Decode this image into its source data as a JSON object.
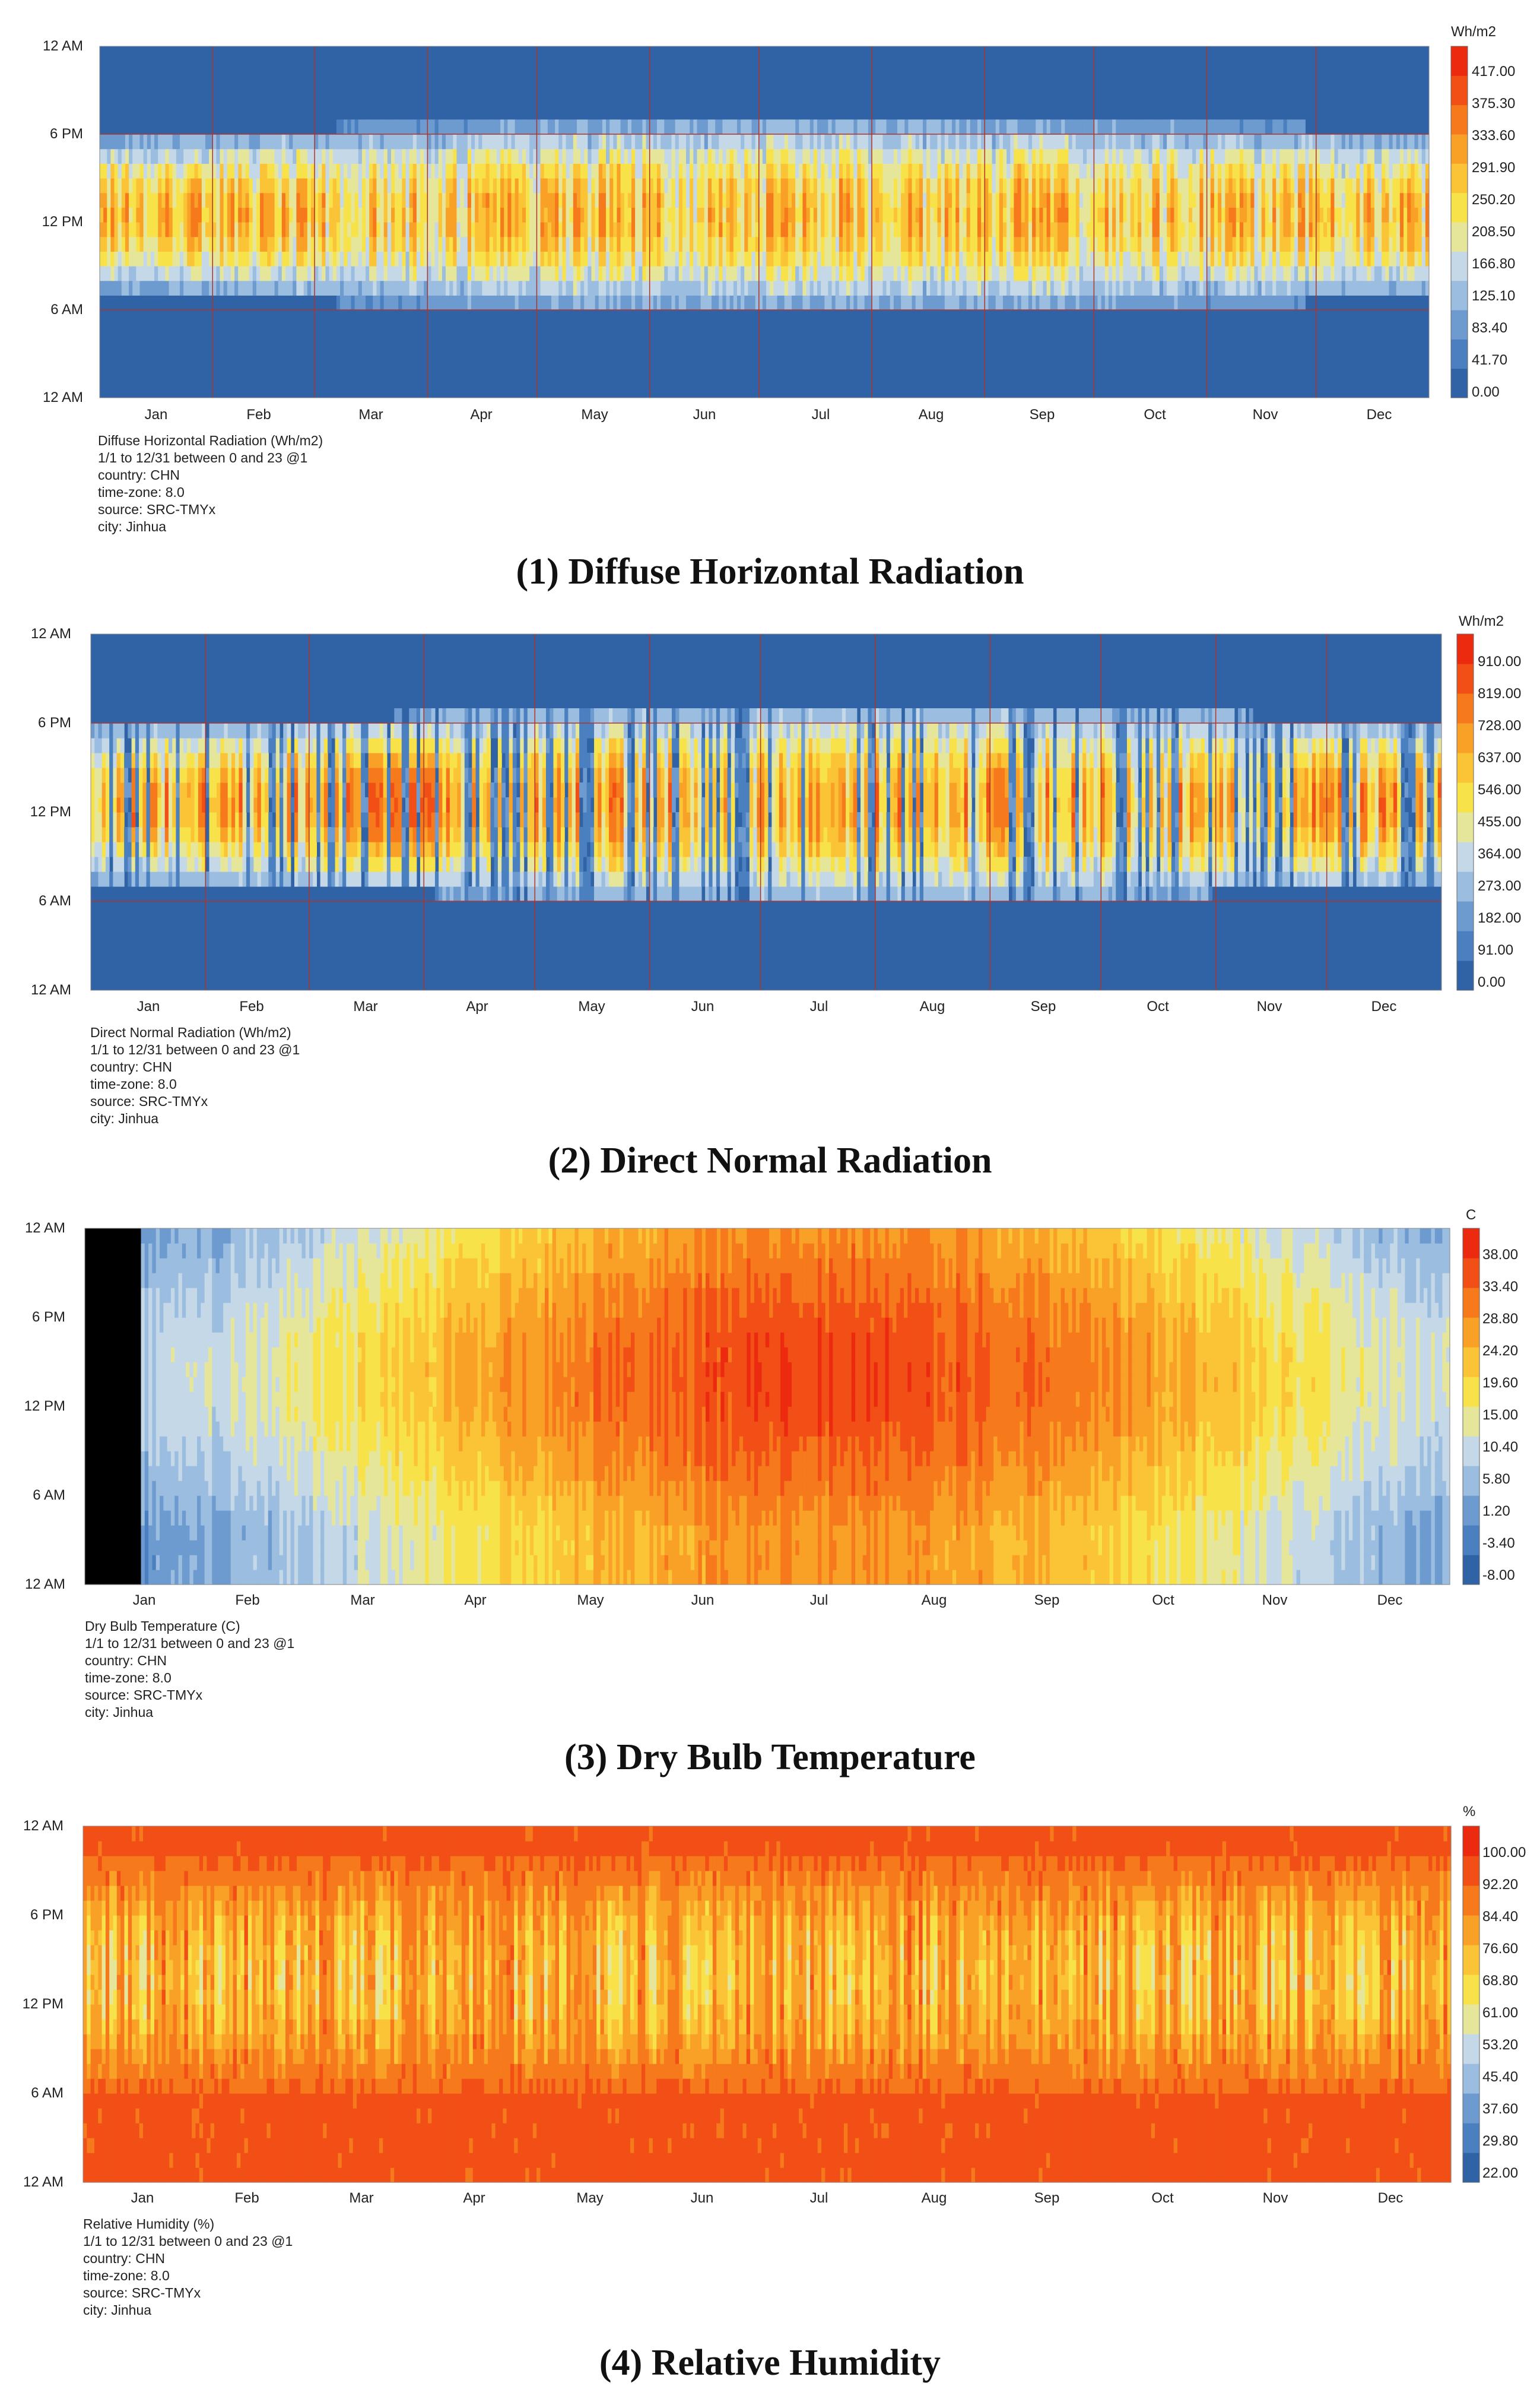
{
  "chart_data": [
    {
      "type": "heatmap",
      "caption": "(1) Diffuse Horizontal Radiation",
      "unit": "Wh/m2",
      "y_tick_labels": [
        "12 AM",
        "6 PM",
        "12 PM",
        "6 AM",
        "12 AM"
      ],
      "x_tick_labels": [
        "Jan",
        "Feb",
        "Mar",
        "Apr",
        "May",
        "Jun",
        "Jul",
        "Aug",
        "Sep",
        "Oct",
        "Nov",
        "Dec"
      ],
      "legend_labels": [
        "417.00",
        "375.30",
        "333.60",
        "291.90",
        "250.20",
        "208.50",
        "166.80",
        "125.10",
        "83.40",
        "41.70",
        "0.00"
      ],
      "value_range": [
        0,
        417
      ],
      "metadata": [
        "Diffuse Horizontal Radiation (Wh/m2)",
        "1/1 to 12/31 between 0 and 23 @1",
        "country: CHN",
        "time-zone: 8.0",
        "source: SRC-TMYx",
        "city: Jinhua"
      ],
      "notes": "Daytime values peak near midday, zero at night"
    },
    {
      "type": "heatmap",
      "caption": "(2) Direct Normal Radiation",
      "unit": "Wh/m2",
      "y_tick_labels": [
        "12 AM",
        "6 PM",
        "12 PM",
        "6 AM",
        "12 AM"
      ],
      "x_tick_labels": [
        "Jan",
        "Feb",
        "Mar",
        "Apr",
        "May",
        "Jun",
        "Jul",
        "Aug",
        "Sep",
        "Oct",
        "Nov",
        "Dec"
      ],
      "legend_labels": [
        "910.00",
        "819.00",
        "728.00",
        "637.00",
        "546.00",
        "455.00",
        "364.00",
        "273.00",
        "182.00",
        "91.00",
        "0.00"
      ],
      "value_range": [
        0,
        910
      ],
      "metadata": [
        "Direct Normal Radiation (Wh/m2)",
        "1/1 to 12/31 between 0 and 23 @1",
        "country: CHN",
        "time-zone: 8.0",
        "source: SRC-TMYx",
        "city: Jinhua"
      ],
      "notes": "Clear days show high midday values, cloudy days near zero"
    },
    {
      "type": "heatmap",
      "caption": "(3) Dry Bulb Temperature",
      "unit": "C",
      "y_tick_labels": [
        "12 AM",
        "6 PM",
        "12 PM",
        "6 AM",
        "12 AM"
      ],
      "x_tick_labels": [
        "Jan",
        "Feb",
        "Mar",
        "Apr",
        "May",
        "Jun",
        "Jul",
        "Aug",
        "Sep",
        "Oct",
        "Nov",
        "Dec"
      ],
      "legend_labels": [
        "38.00",
        "33.40",
        "28.80",
        "24.20",
        "19.60",
        "15.00",
        "10.40",
        "5.80",
        "1.20",
        "-3.40",
        "-8.00"
      ],
      "value_range": [
        -8,
        38
      ],
      "metadata": [
        "Dry Bulb Temperature (C)",
        "1/1 to 12/31 between 0 and 23 @1",
        "country: CHN",
        "time-zone: 8.0",
        "source: SRC-TMYx",
        "city: Jinhua"
      ],
      "notes": "Warmest in July-August afternoons, coldest in January nights"
    },
    {
      "type": "heatmap",
      "caption": "(4) Relative Humidity",
      "unit": "%",
      "y_tick_labels": [
        "12 AM",
        "6 PM",
        "12 PM",
        "6 AM",
        "12 AM"
      ],
      "x_tick_labels": [
        "Jan",
        "Feb",
        "Mar",
        "Apr",
        "May",
        "Jun",
        "Jul",
        "Aug",
        "Sep",
        "Oct",
        "Nov",
        "Dec"
      ],
      "legend_labels": [
        "100.00",
        "92.20",
        "84.40",
        "76.60",
        "68.80",
        "61.00",
        "53.20",
        "45.40",
        "37.60",
        "29.80",
        "22.00"
      ],
      "value_range": [
        22,
        100
      ],
      "metadata": [
        "Relative Humidity (%)",
        "1/1 to 12/31 between 0 and 23 @1",
        "country: CHN",
        "time-zone: 8.0",
        "source: SRC-TMYx",
        "city: Jinhua"
      ],
      "notes": "High humidity at night and early morning, lower in afternoons"
    }
  ],
  "palette": [
    "#2f63a6",
    "#4a80bf",
    "#6d9bd0",
    "#9bbde0",
    "#c4d8e8",
    "#e6e69a",
    "#f8e24a",
    "#fbc436",
    "#f9a127",
    "#f6791c",
    "#f24f16",
    "#ec2a10"
  ],
  "grid_color": "#b0342a"
}
